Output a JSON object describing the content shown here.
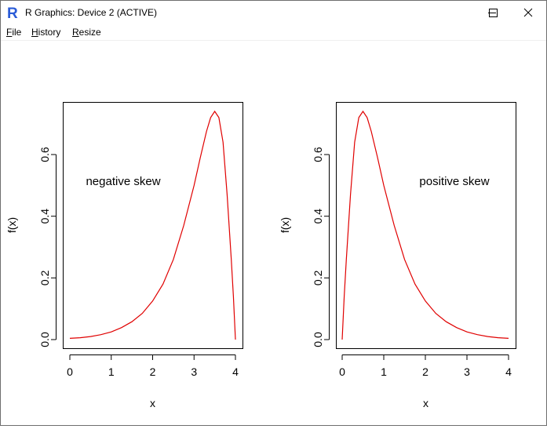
{
  "window": {
    "title": "R Graphics: Device 2 (ACTIVE)",
    "icon": "r-logo-icon",
    "controls": [
      "minimize-icon",
      "maximize-icon",
      "close-icon"
    ]
  },
  "menu": {
    "items": [
      {
        "label": "File",
        "accel": "F",
        "rest": "ile"
      },
      {
        "label": "History",
        "accel": "H",
        "rest": "istory"
      },
      {
        "label": "Resize",
        "accel": "R",
        "rest": "esize"
      }
    ]
  },
  "chart_data": [
    {
      "type": "line",
      "xlabel": "x",
      "ylabel": "f(x)",
      "xlim": [
        0,
        4
      ],
      "ylim": [
        0,
        0.74
      ],
      "xticks": [
        "0",
        "1",
        "2",
        "3",
        "4"
      ],
      "yticks": [
        "0.0",
        "0.2",
        "0.4",
        "0.6"
      ],
      "annotation": "negative skew",
      "line_color": "#e00000",
      "series": [
        {
          "x": [
            0,
            0.25,
            0.5,
            0.75,
            1.0,
            1.25,
            1.5,
            1.75,
            2.0,
            2.25,
            2.5,
            2.75,
            3.0,
            3.15,
            3.3,
            3.4,
            3.5,
            3.6,
            3.7,
            3.8,
            3.9,
            3.95,
            4.0
          ],
          "y": [
            0.004,
            0.006,
            0.01,
            0.016,
            0.025,
            0.039,
            0.058,
            0.085,
            0.125,
            0.18,
            0.26,
            0.37,
            0.5,
            0.59,
            0.675,
            0.72,
            0.74,
            0.72,
            0.64,
            0.47,
            0.26,
            0.14,
            0.0
          ]
        }
      ]
    },
    {
      "type": "line",
      "xlabel": "x",
      "ylabel": "f(x)",
      "xlim": [
        0,
        4
      ],
      "ylim": [
        0,
        0.74
      ],
      "xticks": [
        "0",
        "1",
        "2",
        "3",
        "4"
      ],
      "yticks": [
        "0.0",
        "0.2",
        "0.4",
        "0.6"
      ],
      "annotation": "positive skew",
      "line_color": "#e00000",
      "series": [
        {
          "x": [
            0.0,
            0.05,
            0.1,
            0.2,
            0.3,
            0.4,
            0.5,
            0.6,
            0.7,
            0.85,
            1.0,
            1.25,
            1.5,
            1.75,
            2.0,
            2.25,
            2.5,
            2.75,
            3.0,
            3.25,
            3.5,
            3.75,
            4.0
          ],
          "y": [
            0.0,
            0.14,
            0.26,
            0.47,
            0.64,
            0.72,
            0.74,
            0.72,
            0.675,
            0.59,
            0.5,
            0.37,
            0.26,
            0.18,
            0.125,
            0.085,
            0.058,
            0.039,
            0.025,
            0.016,
            0.01,
            0.006,
            0.004
          ]
        }
      ]
    }
  ]
}
